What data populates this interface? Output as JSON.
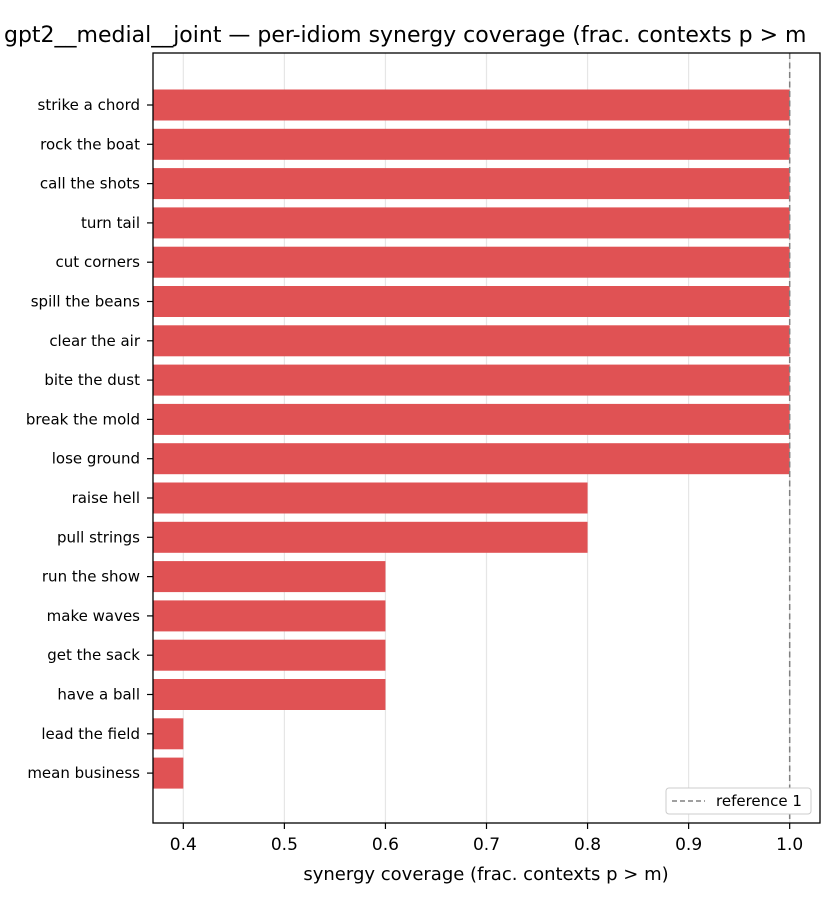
{
  "chart_data": {
    "type": "bar",
    "orientation": "horizontal",
    "title": "gpt2__medial__joint — per-idiom synergy coverage  (frac. contexts p > m",
    "xlabel": "synergy coverage  (frac. contexts p > m)",
    "ylabel": "",
    "xlim": [
      0.37,
      1.03
    ],
    "xticks": [
      "0.4",
      "0.5",
      "0.6",
      "0.7",
      "0.8",
      "0.9",
      "1.0"
    ],
    "grid": "vertical",
    "bar_color": "#e05254",
    "categories": [
      "strike a chord",
      "rock the boat",
      "call the shots",
      "turn tail",
      "cut corners",
      "spill the beans",
      "clear the air",
      "bite the dust",
      "break the mold",
      "lose ground",
      "raise hell",
      "pull strings",
      "run the show",
      "make waves",
      "get the sack",
      "have a ball",
      "lead the field",
      "mean business"
    ],
    "values": [
      1.0,
      1.0,
      1.0,
      1.0,
      1.0,
      1.0,
      1.0,
      1.0,
      1.0,
      1.0,
      0.8,
      0.8,
      0.6,
      0.6,
      0.6,
      0.6,
      0.4,
      0.4
    ],
    "reference_line": {
      "value": 1.0,
      "label": "reference 1",
      "style": "dashed",
      "color": "#808080"
    },
    "legend": {
      "position": "bottom-right",
      "entries": [
        "reference 1"
      ]
    }
  }
}
